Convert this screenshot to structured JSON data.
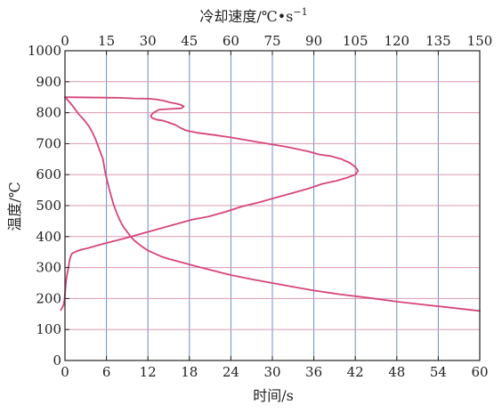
{
  "chart_data": {
    "type": "line",
    "title": "",
    "xlabel": "时间/s",
    "x2label": "冷却速度/℃•s",
    "x2label_exponent": "−1",
    "ylabel": "温度/℃",
    "xlim": [
      0,
      60
    ],
    "x2lim": [
      0,
      150
    ],
    "ylim": [
      0,
      1000
    ],
    "x_ticks": [
      "0",
      "6",
      "12",
      "18",
      "24",
      "30",
      "36",
      "42",
      "48",
      "54",
      "60"
    ],
    "x2_ticks": [
      "0",
      "15",
      "30",
      "45",
      "60",
      "75",
      "90",
      "105",
      "120",
      "135",
      "150"
    ],
    "y_ticks": [
      "0",
      "100",
      "200",
      "300",
      "400",
      "500",
      "600",
      "700",
      "800",
      "900",
      "1000"
    ],
    "grid": true,
    "colors": {
      "series": "#d6457a",
      "vgrid": "#6b8fc4",
      "hgrid": "#d99ab5",
      "axis": "#222222"
    },
    "series": [
      {
        "axis": "x",
        "points": [
          [
            0,
            850
          ],
          [
            0.5,
            838
          ],
          [
            1,
            825
          ],
          [
            1.5,
            810
          ],
          [
            2,
            795
          ],
          [
            2.5,
            783
          ],
          [
            3,
            770
          ],
          [
            3.5,
            755
          ],
          [
            4,
            735
          ],
          [
            4.5,
            710
          ],
          [
            5,
            680
          ],
          [
            5.5,
            650
          ],
          [
            5.8,
            610
          ],
          [
            6,
            590
          ],
          [
            6.5,
            545
          ],
          [
            7,
            505
          ],
          [
            7.5,
            475
          ],
          [
            8,
            450
          ],
          [
            8.5,
            430
          ],
          [
            9,
            415
          ],
          [
            9.5,
            400
          ],
          [
            10,
            388
          ],
          [
            11,
            370
          ],
          [
            12,
            355
          ],
          [
            13,
            345
          ],
          [
            14,
            335
          ],
          [
            15,
            328
          ],
          [
            16,
            322
          ],
          [
            17,
            316
          ],
          [
            18,
            310
          ],
          [
            20,
            298
          ],
          [
            22,
            287
          ],
          [
            24,
            276
          ],
          [
            27,
            262
          ],
          [
            30,
            250
          ],
          [
            33,
            238
          ],
          [
            36,
            226
          ],
          [
            40,
            213
          ],
          [
            44,
            202
          ],
          [
            48,
            190
          ],
          [
            52,
            180
          ],
          [
            56,
            170
          ],
          [
            60,
            160
          ]
        ]
      },
      {
        "axis": "x2",
        "points": [
          [
            0,
            850
          ],
          [
            20,
            848
          ],
          [
            25,
            846
          ],
          [
            30,
            845
          ],
          [
            33,
            843
          ],
          [
            35,
            840
          ],
          [
            36,
            838
          ],
          [
            38,
            833
          ],
          [
            40,
            830
          ],
          [
            42,
            825
          ],
          [
            43,
            820
          ],
          [
            42,
            814
          ],
          [
            38,
            812
          ],
          [
            34,
            810
          ],
          [
            32,
            800
          ],
          [
            31,
            790
          ],
          [
            31.5,
            783
          ],
          [
            33,
            778
          ],
          [
            35,
            775
          ],
          [
            37,
            770
          ],
          [
            40,
            760
          ],
          [
            42,
            750
          ],
          [
            44,
            742
          ],
          [
            48,
            735
          ],
          [
            54,
            728
          ],
          [
            60,
            720
          ],
          [
            70,
            705
          ],
          [
            80,
            690
          ],
          [
            88,
            675
          ],
          [
            92,
            665
          ],
          [
            96,
            660
          ],
          [
            100,
            650
          ],
          [
            103,
            638
          ],
          [
            105,
            625
          ],
          [
            106,
            612
          ],
          [
            105,
            600
          ],
          [
            102,
            590
          ],
          [
            98,
            580
          ],
          [
            93,
            570
          ],
          [
            88,
            555
          ],
          [
            82,
            540
          ],
          [
            76,
            525
          ],
          [
            70,
            510
          ],
          [
            64,
            497
          ],
          [
            58,
            480
          ],
          [
            52,
            465
          ],
          [
            46,
            455
          ],
          [
            40,
            440
          ],
          [
            34,
            425
          ],
          [
            28,
            410
          ],
          [
            22,
            395
          ],
          [
            17,
            384
          ],
          [
            12,
            372
          ],
          [
            8,
            362
          ],
          [
            6,
            358
          ],
          [
            4,
            352
          ],
          [
            2.5,
            345
          ],
          [
            1.8,
            330
          ],
          [
            1.5,
            315
          ],
          [
            1.2,
            297
          ],
          [
            0.8,
            280
          ],
          [
            0.5,
            265
          ],
          [
            0.3,
            245
          ],
          [
            0.1,
            225
          ],
          [
            -0.2,
            195
          ],
          [
            -0.5,
            180
          ],
          [
            -1,
            170
          ],
          [
            -1.5,
            163
          ]
        ]
      }
    ]
  }
}
